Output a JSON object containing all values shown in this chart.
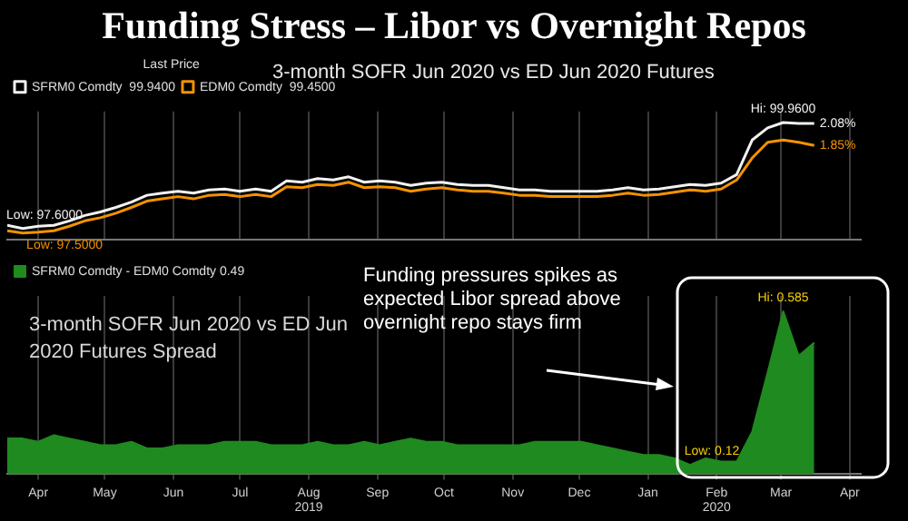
{
  "chart_data": [
    {
      "type": "line",
      "title": "Funding Stress – Libor vs Overnight Repos",
      "subtitle": "3-month SOFR Jun 2020 vs ED Jun 2020 Futures",
      "legend": "top left",
      "legend_title": "Last Price",
      "grid": "x",
      "tick_labels": false,
      "x": [
        "2019-04-01",
        "2019-04-08",
        "2019-04-15",
        "2019-04-22",
        "2019-04-29",
        "2019-05-06",
        "2019-05-13",
        "2019-05-20",
        "2019-05-27",
        "2019-06-03",
        "2019-06-10",
        "2019-06-17",
        "2019-06-24",
        "2019-07-01",
        "2019-07-08",
        "2019-07-15",
        "2019-07-22",
        "2019-07-29",
        "2019-08-05",
        "2019-08-12",
        "2019-08-19",
        "2019-08-26",
        "2019-09-02",
        "2019-09-09",
        "2019-09-16",
        "2019-09-23",
        "2019-09-30",
        "2019-10-07",
        "2019-10-14",
        "2019-10-21",
        "2019-10-28",
        "2019-11-04",
        "2019-11-11",
        "2019-11-18",
        "2019-11-25",
        "2019-12-02",
        "2019-12-09",
        "2019-12-16",
        "2019-12-23",
        "2019-12-30",
        "2020-01-06",
        "2020-01-13",
        "2020-01-20",
        "2020-01-27",
        "2020-02-03",
        "2020-02-10",
        "2020-02-17",
        "2020-02-24",
        "2020-03-02",
        "2020-03-09",
        "2020-03-16",
        "2020-03-23",
        "2020-03-30"
      ],
      "xlim": [
        "2019-04-01",
        "2020-04-20"
      ],
      "xticks": [
        {
          "value": "2019-04-15",
          "label": null
        },
        {
          "value": "2019-05-15",
          "label": null
        },
        {
          "value": "2019-06-15",
          "label": null
        },
        {
          "value": "2019-07-15",
          "label": null
        },
        {
          "value": "2019-08-15",
          "label": null
        },
        {
          "value": "2019-09-15",
          "label": null
        },
        {
          "value": "2019-10-15",
          "label": null
        },
        {
          "value": "2019-11-15",
          "label": null
        },
        {
          "value": "2019-12-15",
          "label": null
        },
        {
          "value": "2020-01-15",
          "label": null
        },
        {
          "value": "2020-02-15",
          "label": null
        },
        {
          "value": "2020-03-15",
          "label": null
        },
        {
          "value": "2020-04-15",
          "label": null
        }
      ],
      "annotations": [
        "Funding pressures spikes as expected Libor spread above overnight repo stays firm",
        {
          "text": "2.08%",
          "x": "2020-03-30",
          "y": 99.94
        },
        {
          "text": "1.85%",
          "x": "2020-03-30",
          "y": 99.45
        }
      ],
      "series": [
        {
          "name": "SFRM0 Comdty  99.9400",
          "color": "#f2f2f2",
          "values": [
            97.67,
            97.6,
            97.65,
            97.67,
            97.77,
            97.89,
            97.97,
            98.07,
            98.19,
            98.34,
            98.39,
            98.43,
            98.39,
            98.46,
            98.48,
            98.43,
            98.48,
            98.43,
            98.66,
            98.63,
            98.71,
            98.68,
            98.75,
            98.63,
            98.66,
            98.63,
            98.56,
            98.61,
            98.63,
            98.58,
            98.56,
            98.56,
            98.51,
            98.46,
            98.46,
            98.43,
            98.43,
            98.43,
            98.43,
            98.46,
            98.51,
            98.46,
            98.48,
            98.53,
            98.58,
            98.56,
            98.61,
            98.8,
            99.57,
            99.84,
            99.96,
            99.94,
            99.94
          ],
          "value_labels": [
            null,
            "Low: 97.6000",
            null,
            null,
            null,
            null,
            null,
            null,
            null,
            null,
            null,
            null,
            null,
            null,
            null,
            null,
            null,
            null,
            null,
            null,
            null,
            null,
            null,
            null,
            null,
            null,
            null,
            null,
            null,
            null,
            null,
            null,
            null,
            null,
            null,
            null,
            null,
            null,
            null,
            null,
            null,
            null,
            null,
            null,
            null,
            null,
            null,
            null,
            null,
            null,
            "Hi: 99.9600",
            null,
            null
          ]
        },
        {
          "name": "EDM0 Comdty  99.4500",
          "color": "#f39200",
          "values": [
            97.55,
            97.5,
            97.52,
            97.55,
            97.65,
            97.77,
            97.84,
            97.94,
            98.07,
            98.21,
            98.26,
            98.31,
            98.26,
            98.34,
            98.36,
            98.31,
            98.36,
            98.31,
            98.53,
            98.51,
            98.58,
            98.56,
            98.63,
            98.51,
            98.53,
            98.51,
            98.43,
            98.48,
            98.51,
            98.46,
            98.43,
            98.43,
            98.39,
            98.34,
            98.34,
            98.31,
            98.31,
            98.31,
            98.31,
            98.34,
            98.39,
            98.34,
            98.36,
            98.41,
            98.46,
            98.43,
            98.48,
            98.68,
            99.17,
            99.52,
            99.57,
            99.52,
            99.45
          ],
          "value_labels": [
            null,
            "Low: 97.5000",
            null,
            null,
            null,
            null,
            null,
            null,
            null,
            null,
            null,
            null,
            null,
            null,
            null,
            null,
            null,
            null,
            null,
            null,
            null,
            null,
            null,
            null,
            null,
            null,
            null,
            null,
            null,
            null,
            null,
            null,
            null,
            null,
            null,
            null,
            null,
            null,
            null,
            null,
            null,
            null,
            null,
            null,
            null,
            null,
            null,
            null,
            null,
            null,
            null,
            null,
            null
          ]
        }
      ]
    },
    {
      "type": "area",
      "title": "3-month SOFR Jun 2020 vs ED Jun 2020 Futures Spread",
      "legend": "top left",
      "grid": "x",
      "tick_labels": "x",
      "x": [
        "2019-04-01",
        "2019-04-08",
        "2019-04-15",
        "2019-04-22",
        "2019-04-29",
        "2019-05-06",
        "2019-05-13",
        "2019-05-20",
        "2019-05-27",
        "2019-06-03",
        "2019-06-10",
        "2019-06-17",
        "2019-06-24",
        "2019-07-01",
        "2019-07-08",
        "2019-07-15",
        "2019-07-22",
        "2019-07-29",
        "2019-08-05",
        "2019-08-12",
        "2019-08-19",
        "2019-08-26",
        "2019-09-02",
        "2019-09-09",
        "2019-09-16",
        "2019-09-23",
        "2019-09-30",
        "2019-10-07",
        "2019-10-14",
        "2019-10-21",
        "2019-10-28",
        "2019-11-04",
        "2019-11-11",
        "2019-11-18",
        "2019-11-25",
        "2019-12-02",
        "2019-12-09",
        "2019-12-16",
        "2019-12-23",
        "2019-12-30",
        "2020-01-06",
        "2020-01-13",
        "2020-01-20",
        "2020-01-27",
        "2020-02-03",
        "2020-02-10",
        "2020-02-17",
        "2020-02-24",
        "2020-03-02",
        "2020-03-09",
        "2020-03-16",
        "2020-03-23",
        "2020-03-30"
      ],
      "xlim": [
        "2019-04-01",
        "2020-04-20"
      ],
      "xticks": [
        {
          "value": "2019-04-15",
          "label": "Apr"
        },
        {
          "value": "2019-05-15",
          "label": "May"
        },
        {
          "value": "2019-06-15",
          "label": "Jun"
        },
        {
          "value": "2019-07-15",
          "label": "Jul"
        },
        {
          "value": "2019-08-15",
          "label": "Aug\n2019"
        },
        {
          "value": "2019-09-15",
          "label": "Sep"
        },
        {
          "value": "2019-10-15",
          "label": "Oct"
        },
        {
          "value": "2019-11-15",
          "label": "Nov"
        },
        {
          "value": "2019-12-15",
          "label": "Dec"
        },
        {
          "value": "2020-01-15",
          "label": "Jan"
        },
        {
          "value": "2020-02-15",
          "label": "Feb\n2020"
        },
        {
          "value": "2020-03-15",
          "label": "Mar"
        },
        {
          "value": "2020-04-15",
          "label": "Apr"
        }
      ],
      "series": [
        {
          "name": "SFRM0 Comdty - EDM0 Comdty 0.49",
          "color": "#1f8a1f",
          "values": [
            0.2,
            0.2,
            0.19,
            0.21,
            0.2,
            0.19,
            0.18,
            0.18,
            0.19,
            0.17,
            0.17,
            0.18,
            0.18,
            0.18,
            0.19,
            0.19,
            0.19,
            0.18,
            0.18,
            0.18,
            0.19,
            0.18,
            0.18,
            0.19,
            0.18,
            0.19,
            0.2,
            0.19,
            0.19,
            0.18,
            0.18,
            0.18,
            0.18,
            0.18,
            0.19,
            0.19,
            0.19,
            0.19,
            0.18,
            0.17,
            0.16,
            0.15,
            0.15,
            0.14,
            0.12,
            0.14,
            0.13,
            0.13,
            0.22,
            0.4,
            0.585,
            0.45,
            0.49
          ],
          "value_labels": [
            null,
            null,
            null,
            null,
            null,
            null,
            null,
            null,
            null,
            null,
            null,
            null,
            null,
            null,
            null,
            null,
            null,
            null,
            null,
            null,
            null,
            null,
            null,
            null,
            null,
            null,
            null,
            null,
            null,
            null,
            null,
            null,
            null,
            null,
            null,
            null,
            null,
            null,
            null,
            null,
            null,
            null,
            null,
            null,
            "Low: 0.12",
            null,
            null,
            null,
            null,
            null,
            "Hi: 0.585",
            null,
            null
          ]
        }
      ]
    }
  ]
}
